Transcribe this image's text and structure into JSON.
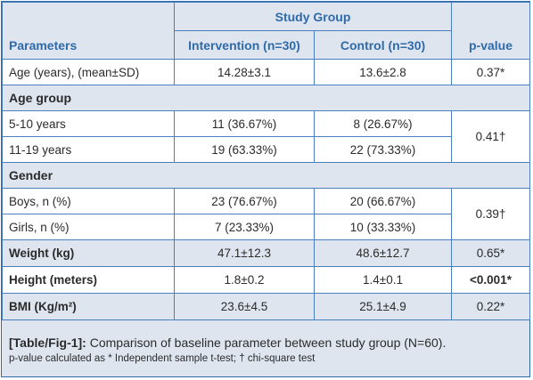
{
  "table": {
    "header": {
      "study_group": "Study Group",
      "parameters": "Parameters",
      "intervention": "Intervention (n=30)",
      "control": "Control (n=30)",
      "p_value": "p-value"
    },
    "age": {
      "label": "Age (years), (mean±SD)",
      "intervention": "14.28±3.1",
      "control": "13.6±2.8",
      "p": "0.37*"
    },
    "age_group": {
      "label": "Age group",
      "rows": [
        {
          "label": "5-10 years",
          "intervention": "11 (36.67%)",
          "control": "8 (26.67%)"
        },
        {
          "label": "11-19 years",
          "intervention": "19 (63.33%)",
          "control": "22 (73.33%)"
        }
      ],
      "p": "0.41†"
    },
    "gender": {
      "label": "Gender",
      "rows": [
        {
          "label": "Boys, n (%)",
          "intervention": "23 (76.67%)",
          "control": "20 (66.67%)"
        },
        {
          "label": "Girls, n (%)",
          "intervention": "7 (23.33%)",
          "control": "10 (33.33%)"
        }
      ],
      "p": "0.39†"
    },
    "weight": {
      "label": "Weight (kg)",
      "intervention": "47.1±12.3",
      "control": "48.6±12.7",
      "p": "0.65*"
    },
    "height": {
      "label": "Height (meters)",
      "intervention": "1.8±0.2",
      "control": "1.4±0.1",
      "p": "<0.001*"
    },
    "bmi": {
      "label": "BMI (Kg/m²)",
      "intervention": "23.6±4.5",
      "control": "25.1±4.9",
      "p": "0.22*"
    }
  },
  "caption": {
    "ref": "[Table/Fig-1]:",
    "title": " Comparison of baseline parameter between study group (N=60).",
    "note": "p-value calculated as * Independent sample t-test; † chi-square test"
  }
}
